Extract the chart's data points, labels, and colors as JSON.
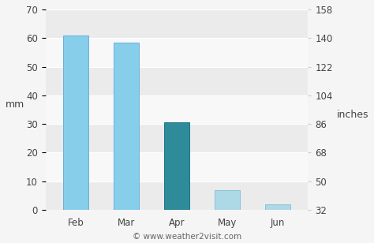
{
  "categories": [
    "Feb",
    "Mar",
    "Apr",
    "May",
    "Jun"
  ],
  "values": [
    61,
    58.5,
    30.5,
    7,
    2
  ],
  "bar_colors": [
    "#87CEEB",
    "#87CEEB",
    "#2E8B9A",
    "#ADD8E6",
    "#ADD8E6"
  ],
  "bar_edge_colors": [
    "#6aafe0",
    "#6aafe0",
    "#1f728a",
    "#8ac0dd",
    "#8ac0dd"
  ],
  "ylabel_left": "mm",
  "ylabel_right": "inches",
  "ylim_left": [
    0,
    70
  ],
  "ylim_right": [
    32,
    158
  ],
  "yticks_left": [
    0,
    10,
    20,
    30,
    40,
    50,
    60,
    70
  ],
  "yticks_right": [
    32,
    50,
    68,
    86,
    104,
    122,
    140,
    158
  ],
  "band_colors": [
    "#ebebeb",
    "#f8f8f8"
  ],
  "figure_bg": "#f5f5f5",
  "footer_text": "© www.weather2visit.com",
  "footer_fontsize": 7.5,
  "axis_fontsize": 9,
  "tick_fontsize": 8.5,
  "bar_width": 0.5,
  "spine_color": "#cccccc",
  "text_color": "#444444"
}
